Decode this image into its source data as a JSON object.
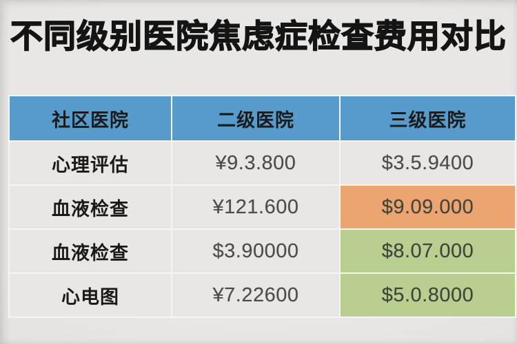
{
  "title": "不同级别医院焦虑症检查费用对比",
  "colors": {
    "header-bg": "#569bcb",
    "cell-bg": "#e8e7e5",
    "separator": "#f6f5f2",
    "hl-orange": "#eca470",
    "hl-green": "#b8cf90",
    "title-color": "#141414",
    "label-color": "#1a1a1a",
    "value-color": "#4b4b4b",
    "hl-text": "#3e443a"
  },
  "chart_data": {
    "type": "table",
    "title": "不同级别医院焦虑症检查费用对比",
    "columns": [
      "社区医院",
      "二级医院",
      "三级医院"
    ],
    "rows": [
      [
        "心理评估",
        "¥9.3.800",
        "$3.5.9400"
      ],
      [
        "血液检查",
        "¥121.600",
        "$9.09.000"
      ],
      [
        "血液检查",
        "$3.90000",
        "$8.07.000"
      ],
      [
        "心电图",
        "¥7.22600",
        "$5.0.8000"
      ]
    ],
    "highlighted_cells": [
      {
        "row": 1,
        "col": 2,
        "highlight": "orange"
      },
      {
        "row": 2,
        "col": 2,
        "highlight": "green"
      },
      {
        "row": 3,
        "col": 2,
        "highlight": "green"
      }
    ],
    "legend_position": "none",
    "grid": true
  }
}
